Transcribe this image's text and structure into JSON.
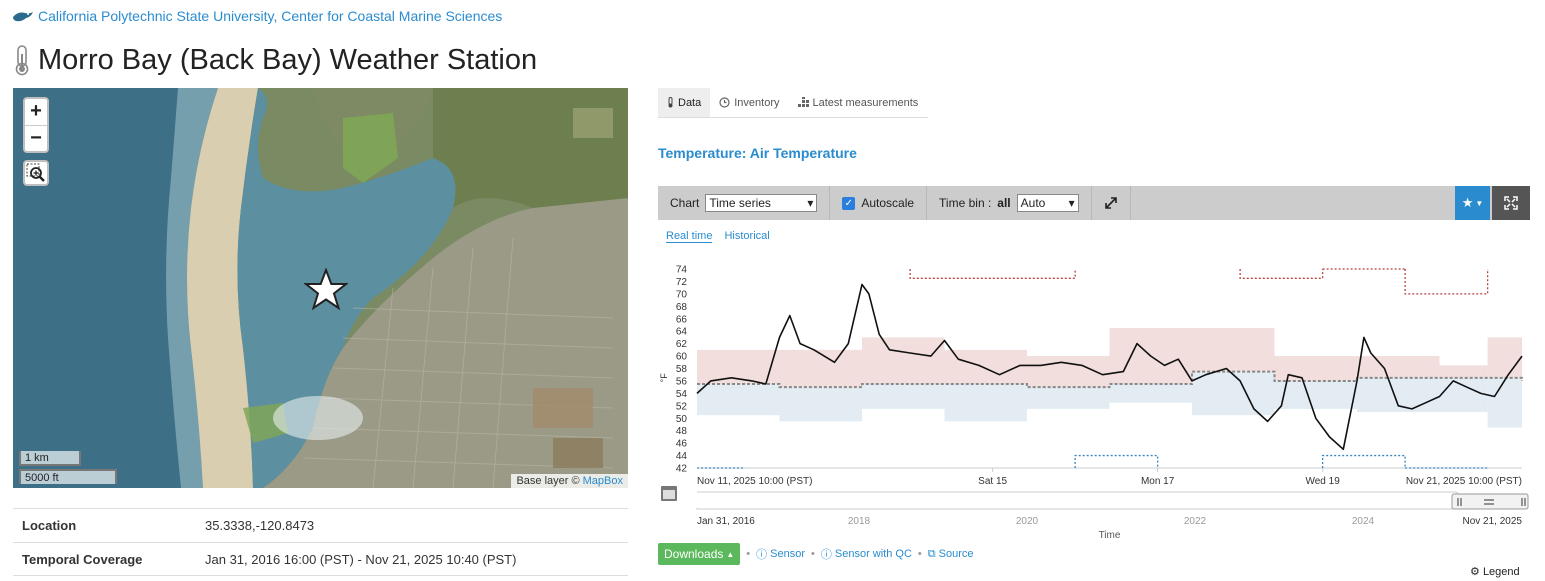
{
  "header": {
    "org_link": "California Polytechnic State University, Center for Coastal Marine Sciences",
    "title": "Morro Bay (Back Bay) Weather Station"
  },
  "map": {
    "zoom_in": "+",
    "zoom_out": "−",
    "scale_km": "1 km",
    "scale_ft": "5000 ft",
    "attribution_prefix": "Base layer © ",
    "attribution_link": "MapBox"
  },
  "info": {
    "location_label": "Location",
    "location_value": "35.3338,-120.8473",
    "coverage_label": "Temporal Coverage",
    "coverage_value": "Jan 31, 2016 16:00 (PST) - Nov 21, 2025 10:40 (PST)"
  },
  "tabs": [
    {
      "label": "Data",
      "icon": "thermometer-icon",
      "active": true
    },
    {
      "label": "Inventory",
      "icon": "clock-icon",
      "active": false
    },
    {
      "label": "Latest measurements",
      "icon": "grid-icon",
      "active": false
    }
  ],
  "section_title": "Temperature: Air Temperature",
  "toolbar": {
    "chart_label": "Chart",
    "chart_value": "Time series",
    "autoscale_label": "Autoscale",
    "timebin_label": "Time bin :",
    "timebin_scope": "all",
    "timebin_value": "Auto"
  },
  "subtabs": [
    "Real time",
    "Historical"
  ],
  "bottom": {
    "downloads": "Downloads",
    "sensor": "Sensor",
    "sensor_qc": "Sensor with QC",
    "source": "Source",
    "legend": "Legend"
  },
  "colors": {
    "accent": "#2a8ccf",
    "upper_band": "#f2dedc",
    "lower_band": "#e3ecf2",
    "max_line": "#b84242",
    "min_line": "#3a86c0",
    "data_line": "#111111"
  },
  "chart_data": {
    "type": "line",
    "ylabel": "°F",
    "ylim": [
      42,
      74
    ],
    "yticks": [
      42,
      44,
      46,
      48,
      50,
      52,
      54,
      56,
      58,
      60,
      62,
      64,
      66,
      68,
      70,
      72,
      74
    ],
    "x_range": [
      "2025-11-11T10:00",
      "2025-11-21T10:00"
    ],
    "x_start_label": "Nov 11, 2025 10:00 (PST)",
    "x_end_label": "Nov 21, 2025 10:00 (PST)",
    "x_ticks": [
      {
        "x": "2025-11-15T00:00",
        "label": "Sat 15"
      },
      {
        "x": "2025-11-17T00:00",
        "label": "Mon 17"
      },
      {
        "x": "2025-11-19T00:00",
        "label": "Wed 19"
      }
    ],
    "series": [
      {
        "style": "solid",
        "points": [
          [
            "2025-11-11T10:00",
            54.0
          ],
          [
            "2025-11-11T14:00",
            56.0
          ],
          [
            "2025-11-11T20:00",
            56.5
          ],
          [
            "2025-11-12T02:00",
            56.0
          ],
          [
            "2025-11-12T06:00",
            55.5
          ],
          [
            "2025-11-12T10:00",
            63.0
          ],
          [
            "2025-11-12T13:00",
            66.5
          ],
          [
            "2025-11-12T16:00",
            62.0
          ],
          [
            "2025-11-12T20:00",
            61.0
          ],
          [
            "2025-11-13T02:00",
            59.0
          ],
          [
            "2025-11-13T06:00",
            62.0
          ],
          [
            "2025-11-13T10:00",
            71.5
          ],
          [
            "2025-11-13T12:00",
            70.0
          ],
          [
            "2025-11-13T15:00",
            63.5
          ],
          [
            "2025-11-13T18:00",
            61.0
          ],
          [
            "2025-11-14T00:00",
            60.5
          ],
          [
            "2025-11-14T06:00",
            60.0
          ],
          [
            "2025-11-14T10:00",
            62.5
          ],
          [
            "2025-11-14T14:00",
            59.5
          ],
          [
            "2025-11-14T20:00",
            58.5
          ],
          [
            "2025-11-15T02:00",
            57.0
          ],
          [
            "2025-11-15T08:00",
            58.5
          ],
          [
            "2025-11-15T14:00",
            58.5
          ],
          [
            "2025-11-15T20:00",
            59.0
          ],
          [
            "2025-11-16T02:00",
            58.5
          ],
          [
            "2025-11-16T08:00",
            57.0
          ],
          [
            "2025-11-16T14:00",
            57.5
          ],
          [
            "2025-11-16T18:00",
            62.0
          ],
          [
            "2025-11-16T22:00",
            60.0
          ],
          [
            "2025-11-17T02:00",
            58.5
          ],
          [
            "2025-11-17T06:00",
            59.5
          ],
          [
            "2025-11-17T10:00",
            56.0
          ],
          [
            "2025-11-17T14:00",
            57.0
          ],
          [
            "2025-11-17T20:00",
            58.0
          ],
          [
            "2025-11-18T00:00",
            56.0
          ],
          [
            "2025-11-18T04:00",
            51.5
          ],
          [
            "2025-11-18T08:00",
            49.5
          ],
          [
            "2025-11-18T12:00",
            52.0
          ],
          [
            "2025-11-18T14:00",
            57.0
          ],
          [
            "2025-11-18T18:00",
            56.5
          ],
          [
            "2025-11-18T22:00",
            50.0
          ],
          [
            "2025-11-19T02:00",
            47.0
          ],
          [
            "2025-11-19T06:00",
            45.0
          ],
          [
            "2025-11-19T10:00",
            56.0
          ],
          [
            "2025-11-19T12:00",
            63.0
          ],
          [
            "2025-11-19T14:00",
            60.5
          ],
          [
            "2025-11-19T18:00",
            58.0
          ],
          [
            "2025-11-19T22:00",
            52.0
          ],
          [
            "2025-11-20T02:00",
            51.5
          ],
          [
            "2025-11-20T06:00",
            52.5
          ],
          [
            "2025-11-20T10:00",
            53.5
          ],
          [
            "2025-11-20T14:00",
            56.0
          ],
          [
            "2025-11-20T18:00",
            55.0
          ],
          [
            "2025-11-20T22:00",
            54.0
          ],
          [
            "2025-11-21T02:00",
            53.5
          ],
          [
            "2025-11-21T06:00",
            57.0
          ],
          [
            "2025-11-21T10:00",
            60.0
          ]
        ]
      },
      {
        "style": "dotted-grey",
        "points": [
          [
            "2025-11-11T10:00",
            55.5
          ],
          [
            "2025-11-12T10:00",
            55.0
          ],
          [
            "2025-11-13T10:00",
            55.5
          ],
          [
            "2025-11-15T10:00",
            55.0
          ],
          [
            "2025-11-16T10:00",
            55.5
          ],
          [
            "2025-11-17T10:00",
            57.5
          ],
          [
            "2025-11-18T10:00",
            56.0
          ],
          [
            "2025-11-19T10:00",
            56.5
          ],
          [
            "2025-11-21T10:00",
            56.0
          ]
        ]
      }
    ],
    "bands": {
      "upper": [
        [
          "2025-11-11T10:00",
          "2025-11-12T10:00",
          61.0
        ],
        [
          "2025-11-12T10:00",
          "2025-11-13T10:00",
          61.0
        ],
        [
          "2025-11-13T10:00",
          "2025-11-14T10:00",
          63.0
        ],
        [
          "2025-11-14T10:00",
          "2025-11-15T10:00",
          61.0
        ],
        [
          "2025-11-15T10:00",
          "2025-11-16T10:00",
          60.0
        ],
        [
          "2025-11-16T10:00",
          "2025-11-17T10:00",
          64.5
        ],
        [
          "2025-11-17T10:00",
          "2025-11-18T10:00",
          64.5
        ],
        [
          "2025-11-18T10:00",
          "2025-11-19T10:00",
          60.0
        ],
        [
          "2025-11-19T10:00",
          "2025-11-20T10:00",
          60.0
        ],
        [
          "2025-11-20T10:00",
          "2025-11-21T00:00",
          58.5
        ],
        [
          "2025-11-21T00:00",
          "2025-11-21T10:00",
          63.0
        ]
      ],
      "lower": [
        [
          "2025-11-11T10:00",
          "2025-11-12T10:00",
          50.5
        ],
        [
          "2025-11-12T10:00",
          "2025-11-13T10:00",
          49.5
        ],
        [
          "2025-11-13T10:00",
          "2025-11-14T10:00",
          51.5
        ],
        [
          "2025-11-14T10:00",
          "2025-11-15T10:00",
          49.5
        ],
        [
          "2025-11-15T10:00",
          "2025-11-16T10:00",
          51.5
        ],
        [
          "2025-11-16T10:00",
          "2025-11-17T10:00",
          52.5
        ],
        [
          "2025-11-17T10:00",
          "2025-11-18T10:00",
          50.5
        ],
        [
          "2025-11-18T10:00",
          "2025-11-19T10:00",
          51.5
        ],
        [
          "2025-11-19T10:00",
          "2025-11-20T10:00",
          51.0
        ],
        [
          "2025-11-20T10:00",
          "2025-11-21T00:00",
          51.0
        ],
        [
          "2025-11-21T00:00",
          "2025-11-21T10:00",
          48.5
        ]
      ]
    },
    "max_segments": [
      [
        "2025-11-14T00:00",
        "2025-11-16T00:00",
        72.5,
        74.0
      ],
      [
        "2025-11-18T00:00",
        "2025-11-19T00:00",
        72.5,
        74.0
      ],
      [
        "2025-11-19T00:00",
        "2025-11-20T00:00",
        74.0,
        74.0
      ],
      [
        "2025-11-20T00:00",
        "2025-11-21T00:00",
        70.0,
        74.0
      ]
    ],
    "min_segments": [
      [
        "2025-11-11T10:00",
        "2025-11-12T00:00",
        42.0,
        42.0
      ],
      [
        "2025-11-16T00:00",
        "2025-11-17T00:00",
        44.0,
        42.0
      ],
      [
        "2025-11-19T00:00",
        "2025-11-20T00:00",
        44.0,
        42.0
      ],
      [
        "2025-11-20T00:00",
        "2025-11-21T00:00",
        42.0,
        42.0
      ]
    ],
    "navigator": {
      "start_label": "Jan 31, 2016",
      "end_label": "Nov 21, 2025",
      "ticks": [
        "2018",
        "2020",
        "2022",
        "2024"
      ],
      "xlabel": "Time"
    }
  }
}
